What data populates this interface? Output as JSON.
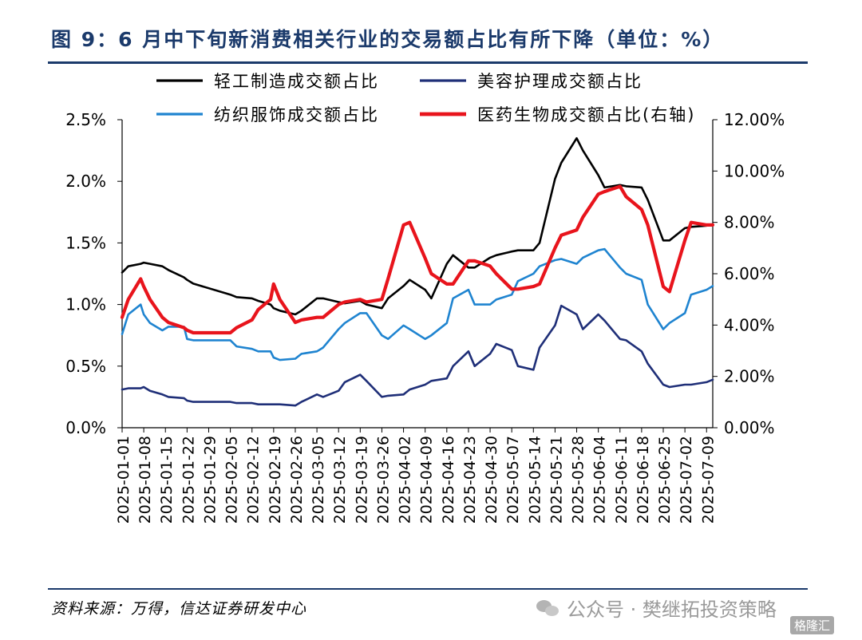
{
  "header": {
    "title": "图 9：6 月中下旬新消费相关行业的交易额占比有所下降（单位：%）"
  },
  "footer": {
    "source": "资料来源：万得，信达证券研发中心",
    "watermark": "公众号 · 樊继拓投资策略",
    "badge": "格隆汇"
  },
  "colors": {
    "title": "#1b3a6b",
    "light_industry": "#000000",
    "beauty": "#1f2f78",
    "textile": "#1f84d0",
    "pharma": "#e8141c"
  },
  "chart_data": {
    "type": "line",
    "x": [
      "2025-01-01",
      "2025-01-03",
      "2025-01-07",
      "2025-01-08",
      "2025-01-10",
      "2025-01-14",
      "2025-01-16",
      "2025-01-21",
      "2025-01-22",
      "2025-01-24",
      "2025-02-05",
      "2025-02-07",
      "2025-02-12",
      "2025-02-14",
      "2025-02-18",
      "2025-02-19",
      "2025-02-21",
      "2025-02-26",
      "2025-02-28",
      "2025-03-05",
      "2025-03-07",
      "2025-03-12",
      "2025-03-14",
      "2025-03-19",
      "2025-03-21",
      "2025-03-26",
      "2025-03-28",
      "2025-04-02",
      "2025-04-04",
      "2025-04-09",
      "2025-04-11",
      "2025-04-16",
      "2025-04-18",
      "2025-04-23",
      "2025-04-25",
      "2025-04-30",
      "2025-05-02",
      "2025-05-07",
      "2025-05-09",
      "2025-05-14",
      "2025-05-16",
      "2025-05-21",
      "2025-05-23",
      "2025-05-28",
      "2025-05-30",
      "2025-06-04",
      "2025-06-06",
      "2025-06-11",
      "2025-06-13",
      "2025-06-18",
      "2025-06-20",
      "2025-06-25",
      "2025-06-27",
      "2025-07-02",
      "2025-07-04",
      "2025-07-09",
      "2025-07-11"
    ],
    "x_ticks": [
      "2025-01-01",
      "2025-01-08",
      "2025-01-15",
      "2025-01-22",
      "2025-01-29",
      "2025-02-05",
      "2025-02-12",
      "2025-02-19",
      "2025-02-26",
      "2025-03-05",
      "2025-03-12",
      "2025-03-19",
      "2025-03-26",
      "2025-04-02",
      "2025-04-09",
      "2025-04-16",
      "2025-04-23",
      "2025-04-30",
      "2025-05-07",
      "2025-05-14",
      "2025-05-21",
      "2025-05-28",
      "2025-06-04",
      "2025-06-11",
      "2025-06-18",
      "2025-06-25",
      "2025-07-02",
      "2025-07-09"
    ],
    "series": [
      {
        "name": "轻工制造成交额占比",
        "axis": "left",
        "values": [
          1.26,
          1.31,
          1.33,
          1.34,
          1.33,
          1.31,
          1.28,
          1.22,
          1.2,
          1.17,
          1.08,
          1.06,
          1.05,
          1.03,
          1.0,
          0.97,
          0.95,
          0.92,
          0.95,
          1.05,
          1.05,
          1.02,
          1.01,
          1.03,
          1.0,
          0.97,
          1.05,
          1.15,
          1.2,
          1.12,
          1.05,
          1.33,
          1.4,
          1.3,
          1.3,
          1.38,
          1.4,
          1.43,
          1.44,
          1.44,
          1.5,
          2.02,
          2.15,
          2.35,
          2.25,
          2.05,
          1.95,
          1.97,
          1.96,
          1.95,
          1.85,
          1.52,
          1.52,
          1.62,
          1.63,
          1.64,
          1.65
        ]
      },
      {
        "name": "美容护理成交额占比",
        "axis": "left",
        "values": [
          0.31,
          0.32,
          0.32,
          0.33,
          0.3,
          0.27,
          0.25,
          0.24,
          0.22,
          0.21,
          0.21,
          0.2,
          0.2,
          0.19,
          0.19,
          0.19,
          0.19,
          0.18,
          0.21,
          0.27,
          0.25,
          0.3,
          0.37,
          0.43,
          0.38,
          0.25,
          0.26,
          0.27,
          0.31,
          0.35,
          0.38,
          0.4,
          0.5,
          0.62,
          0.5,
          0.6,
          0.68,
          0.63,
          0.5,
          0.47,
          0.65,
          0.83,
          0.99,
          0.92,
          0.8,
          0.92,
          0.87,
          0.72,
          0.71,
          0.62,
          0.52,
          0.35,
          0.33,
          0.35,
          0.35,
          0.37,
          0.39
        ]
      },
      {
        "name": "纺织服饰成交额占比",
        "axis": "left",
        "values": [
          0.76,
          0.92,
          1.0,
          0.92,
          0.85,
          0.79,
          0.82,
          0.82,
          0.72,
          0.71,
          0.71,
          0.66,
          0.64,
          0.62,
          0.62,
          0.57,
          0.55,
          0.56,
          0.6,
          0.62,
          0.65,
          0.8,
          0.85,
          0.93,
          0.93,
          0.75,
          0.72,
          0.83,
          0.8,
          0.72,
          0.75,
          0.85,
          1.05,
          1.12,
          1.0,
          1.0,
          1.04,
          1.08,
          1.19,
          1.25,
          1.31,
          1.36,
          1.37,
          1.33,
          1.38,
          1.44,
          1.45,
          1.3,
          1.25,
          1.2,
          1.0,
          0.8,
          0.85,
          0.93,
          1.08,
          1.12,
          1.15
        ]
      },
      {
        "name": "医药生物成交额占比(右轴)",
        "axis": "right",
        "values": [
          4.3,
          5.0,
          5.8,
          5.5,
          5.0,
          4.3,
          4.1,
          3.9,
          3.8,
          3.7,
          3.7,
          3.9,
          4.2,
          4.6,
          5.0,
          5.6,
          5.0,
          4.1,
          4.2,
          4.3,
          4.3,
          4.8,
          4.9,
          5.0,
          4.9,
          5.0,
          5.8,
          7.9,
          8.0,
          6.6,
          6.0,
          5.6,
          5.6,
          6.5,
          6.5,
          6.3,
          6.0,
          5.4,
          5.4,
          5.5,
          5.6,
          7.0,
          7.5,
          7.7,
          8.2,
          9.1,
          9.2,
          9.4,
          9.0,
          8.5,
          7.9,
          5.5,
          5.3,
          7.3,
          8.0,
          7.9,
          7.9
        ]
      }
    ],
    "y_left": {
      "min": 0,
      "max": 2.5,
      "ticks": [
        "0.0%",
        "0.5%",
        "1.0%",
        "1.5%",
        "2.0%",
        "2.5%"
      ]
    },
    "y_right": {
      "min": 0,
      "max": 12,
      "ticks": [
        "0.00%",
        "2.00%",
        "4.00%",
        "6.00%",
        "8.00%",
        "10.00%",
        "12.00%"
      ]
    },
    "legend": [
      {
        "label": "轻工制造成交额占比"
      },
      {
        "label": "美容护理成交额占比"
      },
      {
        "label": "纺织服饰成交额占比"
      },
      {
        "label": "医药生物成交额占比(右轴)"
      }
    ],
    "legend_position": "top",
    "grid": false
  }
}
